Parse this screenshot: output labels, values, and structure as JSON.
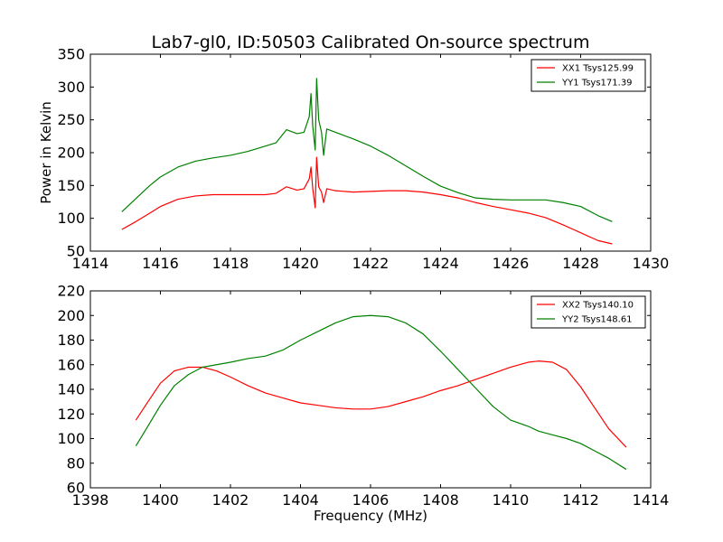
{
  "figure": {
    "title": "Lab7-gl0, ID:50503 Calibrated On-source spectrum",
    "ylabel": "Power in Kelvin",
    "xlabel": "Frequency (MHz)"
  },
  "chart_data": [
    {
      "type": "line",
      "title": "Lab7-gl0, ID:50503 Calibrated On-source spectrum",
      "xlabel": "",
      "ylabel": "Power in Kelvin",
      "xlim": [
        1414,
        1430
      ],
      "ylim": [
        50,
        350
      ],
      "xticks": [
        "1414",
        "1416",
        "1418",
        "1420",
        "1422",
        "1424",
        "1426",
        "1428",
        "1430"
      ],
      "yticks": [
        "50",
        "100",
        "150",
        "200",
        "250",
        "300",
        "350"
      ],
      "legend_position": "top-right",
      "grid": false,
      "series": [
        {
          "name": "XX1 Tsys125.99",
          "color": "#ff0000",
          "x": [
            1414.9,
            1415.3,
            1415.7,
            1416.0,
            1416.5,
            1417.0,
            1417.5,
            1418.0,
            1418.5,
            1419.0,
            1419.3,
            1419.6,
            1419.9,
            1420.1,
            1420.25,
            1420.3,
            1420.35,
            1420.42,
            1420.46,
            1420.52,
            1420.6,
            1420.66,
            1420.75,
            1421.0,
            1421.5,
            1422.0,
            1422.5,
            1423.0,
            1423.5,
            1424.0,
            1424.5,
            1425.0,
            1425.5,
            1426.0,
            1426.5,
            1427.0,
            1427.5,
            1428.0,
            1428.5,
            1428.9
          ],
          "y": [
            83,
            95,
            108,
            118,
            129,
            134,
            136,
            136,
            136,
            136,
            138,
            148,
            143,
            145,
            160,
            178,
            145,
            116,
            193,
            148,
            140,
            124,
            145,
            142,
            140,
            141,
            142,
            142,
            140,
            136,
            131,
            124,
            118,
            113,
            108,
            101,
            90,
            78,
            66,
            61
          ]
        },
        {
          "name": "YY1 Tsys171.39",
          "color": "#008000",
          "x": [
            1414.9,
            1415.3,
            1415.7,
            1416.0,
            1416.5,
            1417.0,
            1417.5,
            1418.0,
            1418.5,
            1419.0,
            1419.3,
            1419.6,
            1419.9,
            1420.1,
            1420.25,
            1420.3,
            1420.35,
            1420.42,
            1420.46,
            1420.52,
            1420.6,
            1420.66,
            1420.75,
            1421.0,
            1421.5,
            1422.0,
            1422.5,
            1423.0,
            1423.5,
            1424.0,
            1424.5,
            1425.0,
            1425.5,
            1426.0,
            1426.5,
            1427.0,
            1427.5,
            1428.0,
            1428.5,
            1428.9
          ],
          "y": [
            110,
            130,
            150,
            163,
            178,
            187,
            192,
            196,
            202,
            210,
            215,
            235,
            229,
            231,
            255,
            290,
            240,
            204,
            313,
            250,
            231,
            196,
            236,
            231,
            221,
            210,
            196,
            180,
            164,
            149,
            139,
            131,
            129,
            128,
            128,
            128,
            124,
            118,
            104,
            95
          ]
        }
      ]
    },
    {
      "type": "line",
      "title": "",
      "xlabel": "Frequency (MHz)",
      "ylabel": "",
      "xlim": [
        1398,
        1414
      ],
      "ylim": [
        60,
        220
      ],
      "xticks": [
        "1398",
        "1400",
        "1402",
        "1404",
        "1406",
        "1408",
        "1410",
        "1412",
        "1414"
      ],
      "yticks": [
        "60",
        "80",
        "100",
        "120",
        "140",
        "160",
        "180",
        "200",
        "220"
      ],
      "legend_position": "top-right",
      "grid": false,
      "series": [
        {
          "name": "XX2 Tsys140.10",
          "color": "#ff0000",
          "x": [
            1399.3,
            1399.6,
            1400.0,
            1400.4,
            1400.8,
            1401.2,
            1401.6,
            1402.0,
            1402.5,
            1403.0,
            1403.5,
            1404.0,
            1404.5,
            1405.0,
            1405.5,
            1406.0,
            1406.5,
            1407.0,
            1407.5,
            1408.0,
            1408.5,
            1409.0,
            1409.5,
            1410.0,
            1410.5,
            1410.8,
            1411.2,
            1411.6,
            1412.0,
            1412.4,
            1412.8,
            1413.3
          ],
          "y": [
            115,
            128,
            145,
            155,
            158,
            158,
            155,
            150,
            143,
            137,
            133,
            129,
            127,
            125,
            124,
            124,
            126,
            130,
            134,
            139,
            143,
            148,
            153,
            158,
            162,
            163,
            162,
            156,
            142,
            125,
            108,
            93
          ]
        },
        {
          "name": "YY2 Tsys148.61",
          "color": "#008000",
          "x": [
            1399.3,
            1399.6,
            1400.0,
            1400.4,
            1400.8,
            1401.2,
            1401.6,
            1402.0,
            1402.5,
            1403.0,
            1403.5,
            1404.0,
            1404.5,
            1405.0,
            1405.5,
            1406.0,
            1406.5,
            1407.0,
            1407.5,
            1408.0,
            1408.5,
            1409.0,
            1409.5,
            1410.0,
            1410.5,
            1410.8,
            1411.2,
            1411.6,
            1412.0,
            1412.4,
            1412.8,
            1413.3
          ],
          "y": [
            94,
            108,
            127,
            143,
            152,
            158,
            160,
            162,
            165,
            167,
            172,
            180,
            187,
            194,
            199,
            200,
            199,
            194,
            185,
            171,
            156,
            141,
            126,
            115,
            110,
            106,
            103,
            100,
            96,
            90,
            84,
            75
          ]
        }
      ]
    }
  ]
}
